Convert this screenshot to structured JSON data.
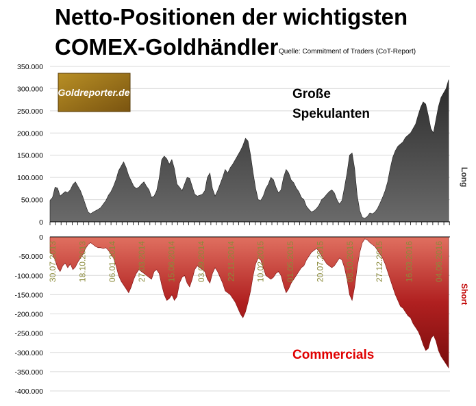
{
  "title_line1": "Netto-Positionen der wichtigsten",
  "title_line2": "COMEX-Goldhändler",
  "source": "Quelle: Commitment of Traders (CoT-Report)",
  "logo_text": "Goldreporter.de",
  "colors": {
    "long_fill": "#404040",
    "short_fill": "#a01818",
    "commercials_label": "#e00000",
    "date_label": "#8a8a3a"
  },
  "chart_data": [
    {
      "type": "area",
      "series": [
        {
          "name": "Große Spekulanten",
          "label_lines": [
            "Große",
            "Spekulanten"
          ],
          "values": [
            48,
            55,
            78,
            76,
            58,
            63,
            68,
            66,
            72,
            84,
            90,
            80,
            70,
            55,
            38,
            22,
            18,
            22,
            25,
            28,
            32,
            40,
            48,
            60,
            68,
            80,
            95,
            115,
            125,
            135,
            122,
            104,
            92,
            80,
            75,
            78,
            85,
            90,
            80,
            72,
            55,
            58,
            70,
            98,
            140,
            148,
            142,
            130,
            140,
            120,
            85,
            78,
            70,
            85,
            100,
            98,
            80,
            62,
            58,
            60,
            62,
            70,
            100,
            110,
            75,
            58,
            70,
            85,
            100,
            118,
            110,
            122,
            130,
            140,
            150,
            160,
            172,
            188,
            182,
            150,
            110,
            75,
            50,
            48,
            58,
            75,
            85,
            100,
            95,
            78,
            65,
            72,
            100,
            118,
            110,
            94,
            88,
            76,
            68,
            55,
            50,
            35,
            28,
            22,
            25,
            30,
            38,
            50,
            55,
            62,
            68,
            72,
            65,
            50,
            40,
            48,
            78,
            110,
            150,
            155,
            120,
            60,
            25,
            10,
            8,
            12,
            20,
            18,
            22,
            30,
            42,
            55,
            70,
            90,
            120,
            145,
            160,
            170,
            175,
            180,
            190,
            195,
            200,
            210,
            220,
            240,
            258,
            270,
            265,
            240,
            210,
            200,
            230,
            260,
            280,
            290,
            300,
            320
          ]
        }
      ],
      "ylim": [
        0,
        350000
      ],
      "yticks": [
        "0",
        "50.000",
        "100.000",
        "150.000",
        "200.000",
        "250.000",
        "300.000",
        "350.000"
      ],
      "ylabel": "Long"
    },
    {
      "type": "area",
      "series": [
        {
          "name": "Commercials",
          "values": [
            -40,
            -45,
            -60,
            -80,
            -90,
            -75,
            -68,
            -80,
            -70,
            -85,
            -78,
            -65,
            -55,
            -45,
            -30,
            -20,
            -15,
            -20,
            -25,
            -28,
            -28,
            -30,
            -28,
            -35,
            -45,
            -55,
            -75,
            -100,
            -115,
            -125,
            -135,
            -145,
            -130,
            -110,
            -95,
            -85,
            -90,
            -95,
            -100,
            -105,
            -110,
            -90,
            -85,
            -95,
            -125,
            -150,
            -165,
            -160,
            -150,
            -165,
            -155,
            -120,
            -105,
            -100,
            -120,
            -130,
            -110,
            -85,
            -75,
            -80,
            -85,
            -90,
            -110,
            -120,
            -95,
            -80,
            -90,
            -105,
            -120,
            -140,
            -145,
            -150,
            -160,
            -170,
            -185,
            -200,
            -210,
            -195,
            -170,
            -140,
            -100,
            -70,
            -55,
            -60,
            -80,
            -100,
            -105,
            -110,
            -105,
            -95,
            -90,
            -100,
            -125,
            -145,
            -135,
            -120,
            -110,
            -100,
            -90,
            -80,
            -75,
            -60,
            -50,
            -40,
            -35,
            -30,
            -38,
            -50,
            -60,
            -70,
            -75,
            -80,
            -75,
            -65,
            -55,
            -60,
            -80,
            -110,
            -150,
            -165,
            -130,
            -80,
            -40,
            -15,
            -5,
            -8,
            -15,
            -20,
            -25,
            -35,
            -45,
            -55,
            -70,
            -90,
            -110,
            -130,
            -150,
            -165,
            -180,
            -185,
            -195,
            -205,
            -210,
            -225,
            -235,
            -245,
            -260,
            -280,
            -295,
            -290,
            -265,
            -255,
            -270,
            -295,
            -310,
            -320,
            -330,
            -340
          ]
        }
      ],
      "ylim": [
        -400000,
        0
      ],
      "yticks": [
        "0",
        "-50.000",
        "-100.000",
        "-150.000",
        "-200.000",
        "-250.000",
        "-300.000",
        "-350.000",
        "-400.000"
      ],
      "ylabel": "Short",
      "x_tick_labels": [
        "30.07.2013",
        "18.10.2013",
        "06.01.2014",
        "27.03.2014",
        "15.06.2014",
        "03.09.2014",
        "22.11.2014",
        "10.02.2015",
        "01.05.2015",
        "20.07.2015",
        "08.10.2015",
        "27.12.2015",
        "16.03.2016",
        "04.06.2016"
      ]
    }
  ]
}
